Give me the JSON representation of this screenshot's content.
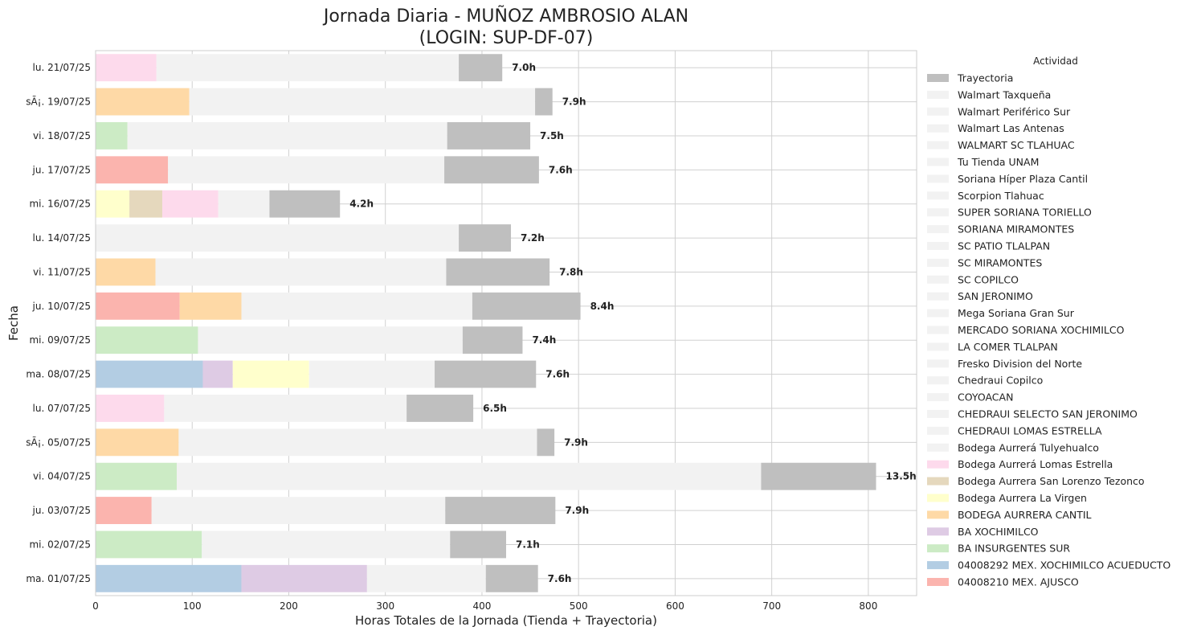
{
  "chart_data": {
    "type": "bar",
    "orientation": "horizontal",
    "stacked": true,
    "title": [
      "Jornada Diaria - MUÑOZ AMBROSIO ALAN",
      "(LOGIN: SUP-DF-07)"
    ],
    "xlabel": "Horas Totales de la Jornada (Tienda + Trayectoria)",
    "ylabel": "Fecha",
    "xlim": [
      0,
      850
    ],
    "xticks": [
      0,
      100,
      200,
      300,
      400,
      500,
      600,
      700,
      800
    ],
    "grid": true,
    "legend_title": "Actividad",
    "legend_position": "right",
    "legend": [
      {
        "name": "Trayectoria",
        "color": "#bfbfbf"
      },
      {
        "name": "Walmart Taxqueña",
        "color": "#f2f2f2"
      },
      {
        "name": "Walmart Periférico Sur",
        "color": "#f2f2f2"
      },
      {
        "name": "Walmart Las Antenas",
        "color": "#f2f2f2"
      },
      {
        "name": "WALMART SC TLAHUAC",
        "color": "#f2f2f2"
      },
      {
        "name": "Tu Tienda UNAM",
        "color": "#f2f2f2"
      },
      {
        "name": "Soriana Híper Plaza Cantil",
        "color": "#f2f2f2"
      },
      {
        "name": "Scorpion Tlahuac",
        "color": "#f2f2f2"
      },
      {
        "name": "SUPER SORIANA TORIELLO",
        "color": "#f2f2f2"
      },
      {
        "name": "SORIANA MIRAMONTES",
        "color": "#f2f2f2"
      },
      {
        "name": "SC PATIO TLALPAN",
        "color": "#f2f2f2"
      },
      {
        "name": "SC MIRAMONTES",
        "color": "#f2f2f2"
      },
      {
        "name": "SC COPILCO",
        "color": "#f2f2f2"
      },
      {
        "name": "SAN JERONIMO",
        "color": "#f2f2f2"
      },
      {
        "name": "Mega Soriana Gran Sur",
        "color": "#f2f2f2"
      },
      {
        "name": "MERCADO SORIANA XOCHIMILCO",
        "color": "#f2f2f2"
      },
      {
        "name": "LA COMER TLALPAN",
        "color": "#f2f2f2"
      },
      {
        "name": "Fresko Division del Norte",
        "color": "#f2f2f2"
      },
      {
        "name": "Chedraui Copilco",
        "color": "#f2f2f2"
      },
      {
        "name": "COYOACAN",
        "color": "#f2f2f2"
      },
      {
        "name": "CHEDRAUI SELECTO SAN JERONIMO",
        "color": "#f2f2f2"
      },
      {
        "name": "CHEDRAUI LOMAS ESTRELLA",
        "color": "#f2f2f2"
      },
      {
        "name": "Bodega Aurrerá Tulyehualco",
        "color": "#f2f2f2"
      },
      {
        "name": "Bodega Aurrerá Lomas Estrella",
        "color": "#fddaec"
      },
      {
        "name": "Bodega Aurrera San Lorenzo Tezonco",
        "color": "#e5d8bd"
      },
      {
        "name": "Bodega Aurrera La Virgen",
        "color": "#ffffcc"
      },
      {
        "name": "BODEGA AURRERA CANTIL",
        "color": "#fed9a6"
      },
      {
        "name": "BA XOCHIMILCO",
        "color": "#decbe4"
      },
      {
        "name": "BA INSURGENTES SUR",
        "color": "#ccebc5"
      },
      {
        "name": "04008292 MEX. XOCHIMILCO ACUEDUCTO",
        "color": "#b3cde3"
      },
      {
        "name": "04008210 MEX. AJUSCO",
        "color": "#fbb4ae"
      }
    ],
    "rows": [
      {
        "date": "lu. 21/07/25",
        "total_label": "7.0h",
        "segments": [
          {
            "activity": "Bodega Aurrerá Lomas Estrella",
            "value": 63
          },
          {
            "activity": "Walmart",
            "value": 313
          },
          {
            "activity": "Trayectoria",
            "value": 45
          }
        ]
      },
      {
        "date": "sÃ¡. 19/07/25",
        "total_label": "7.9h",
        "segments": [
          {
            "activity": "BODEGA AURRERA CANTIL",
            "value": 97
          },
          {
            "activity": "Walmart",
            "value": 358
          },
          {
            "activity": "Trayectoria",
            "value": 18
          }
        ]
      },
      {
        "date": "vi. 18/07/25",
        "total_label": "7.5h",
        "segments": [
          {
            "activity": "BA INSURGENTES SUR",
            "value": 33
          },
          {
            "activity": "Walmart",
            "value": 331
          },
          {
            "activity": "Trayectoria",
            "value": 86
          }
        ]
      },
      {
        "date": "ju. 17/07/25",
        "total_label": "7.6h",
        "segments": [
          {
            "activity": "04008210 MEX. AJUSCO",
            "value": 75
          },
          {
            "activity": "Walmart",
            "value": 286
          },
          {
            "activity": "Trayectoria",
            "value": 98
          }
        ]
      },
      {
        "date": "mi. 16/07/25",
        "total_label": "4.2h",
        "segments": [
          {
            "activity": "Bodega Aurrera La Virgen",
            "value": 35
          },
          {
            "activity": "Bodega Aurrera San Lorenzo Tezonco",
            "value": 34
          },
          {
            "activity": "Bodega Aurrerá Lomas Estrella",
            "value": 58
          },
          {
            "activity": "Walmart",
            "value": 53
          },
          {
            "activity": "Trayectoria",
            "value": 73
          }
        ]
      },
      {
        "date": "lu. 14/07/25",
        "total_label": "7.2h",
        "segments": [
          {
            "activity": "Walmart",
            "value": 376
          },
          {
            "activity": "Trayectoria",
            "value": 54
          }
        ]
      },
      {
        "date": "vi. 11/07/25",
        "total_label": "7.8h",
        "segments": [
          {
            "activity": "BODEGA AURRERA CANTIL",
            "value": 62
          },
          {
            "activity": "Walmart",
            "value": 301
          },
          {
            "activity": "Trayectoria",
            "value": 107
          }
        ]
      },
      {
        "date": "ju. 10/07/25",
        "total_label": "8.4h",
        "segments": [
          {
            "activity": "04008210 MEX. AJUSCO",
            "value": 87
          },
          {
            "activity": "BODEGA AURRERA CANTIL",
            "value": 64
          },
          {
            "activity": "Walmart",
            "value": 239
          },
          {
            "activity": "Trayectoria",
            "value": 112
          }
        ]
      },
      {
        "date": "mi. 09/07/25",
        "total_label": "7.4h",
        "segments": [
          {
            "activity": "BA INSURGENTES SUR",
            "value": 106
          },
          {
            "activity": "Walmart",
            "value": 274
          },
          {
            "activity": "Trayectoria",
            "value": 62
          }
        ]
      },
      {
        "date": "ma. 08/07/25",
        "total_label": "7.6h",
        "segments": [
          {
            "activity": "04008292 MEX. XOCHIMILCO ACUEDUCTO",
            "value": 111
          },
          {
            "activity": "BA XOCHIMILCO",
            "value": 31
          },
          {
            "activity": "Bodega Aurrera La Virgen",
            "value": 79
          },
          {
            "activity": "Walmart",
            "value": 130
          },
          {
            "activity": "Trayectoria",
            "value": 105
          }
        ]
      },
      {
        "date": "lu. 07/07/25",
        "total_label": "6.5h",
        "segments": [
          {
            "activity": "Bodega Aurrerá Lomas Estrella",
            "value": 71
          },
          {
            "activity": "Walmart",
            "value": 251
          },
          {
            "activity": "Trayectoria",
            "value": 69
          }
        ]
      },
      {
        "date": "sÃ¡. 05/07/25",
        "total_label": "7.9h",
        "segments": [
          {
            "activity": "BODEGA AURRERA CANTIL",
            "value": 86
          },
          {
            "activity": "Walmart",
            "value": 371
          },
          {
            "activity": "Trayectoria",
            "value": 18
          }
        ]
      },
      {
        "date": "vi. 04/07/25",
        "total_label": "13.5h",
        "segments": [
          {
            "activity": "BA INSURGENTES SUR",
            "value": 84
          },
          {
            "activity": "Walmart",
            "value": 605
          },
          {
            "activity": "Trayectoria",
            "value": 119
          }
        ]
      },
      {
        "date": "ju. 03/07/25",
        "total_label": "7.9h",
        "segments": [
          {
            "activity": "04008210 MEX. AJUSCO",
            "value": 58
          },
          {
            "activity": "Walmart",
            "value": 304
          },
          {
            "activity": "Trayectoria",
            "value": 114
          }
        ]
      },
      {
        "date": "mi. 02/07/25",
        "total_label": "7.1h",
        "segments": [
          {
            "activity": "BA INSURGENTES SUR",
            "value": 110
          },
          {
            "activity": "Walmart",
            "value": 257
          },
          {
            "activity": "Trayectoria",
            "value": 58
          }
        ]
      },
      {
        "date": "ma. 01/07/25",
        "total_label": "7.6h",
        "segments": [
          {
            "activity": "04008292 MEX. XOCHIMILCO ACUEDUCTO",
            "value": 151
          },
          {
            "activity": "BA XOCHIMILCO",
            "value": 130
          },
          {
            "activity": "Walmart",
            "value": 123
          },
          {
            "activity": "Trayectoria",
            "value": 54
          }
        ]
      }
    ]
  }
}
